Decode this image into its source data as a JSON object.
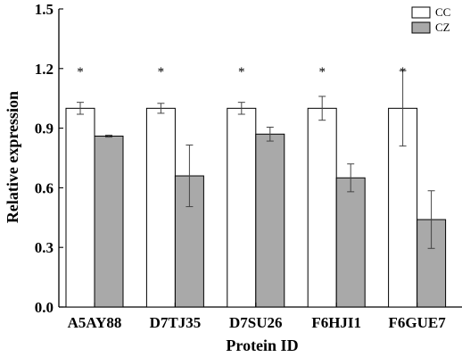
{
  "chart_data": {
    "type": "bar",
    "title": "",
    "xlabel": "Protein ID",
    "ylabel": "Relative expression",
    "ylim": [
      0,
      1.5
    ],
    "yticks": [
      "0.0",
      "0.3",
      "0.6",
      "0.9",
      "1.2",
      "1.5"
    ],
    "categories": [
      "A5AY88",
      "D7TJ35",
      "D7SU26",
      "F6HJI1",
      "F6GUE7"
    ],
    "series": [
      {
        "name": "CC",
        "color": "#ffffff",
        "values": [
          1.0,
          1.0,
          1.0,
          1.0,
          1.0
        ],
        "errors": [
          0.03,
          0.025,
          0.03,
          0.06,
          0.19
        ]
      },
      {
        "name": "CZ",
        "color": "#a9a9a9",
        "values": [
          0.86,
          0.66,
          0.87,
          0.65,
          0.44
        ],
        "errors": [
          0.005,
          0.155,
          0.035,
          0.07,
          0.145
        ]
      }
    ],
    "annotations": [
      "*",
      "*",
      "*",
      "*",
      "*"
    ],
    "legend_position": "top-right",
    "grid": false
  }
}
